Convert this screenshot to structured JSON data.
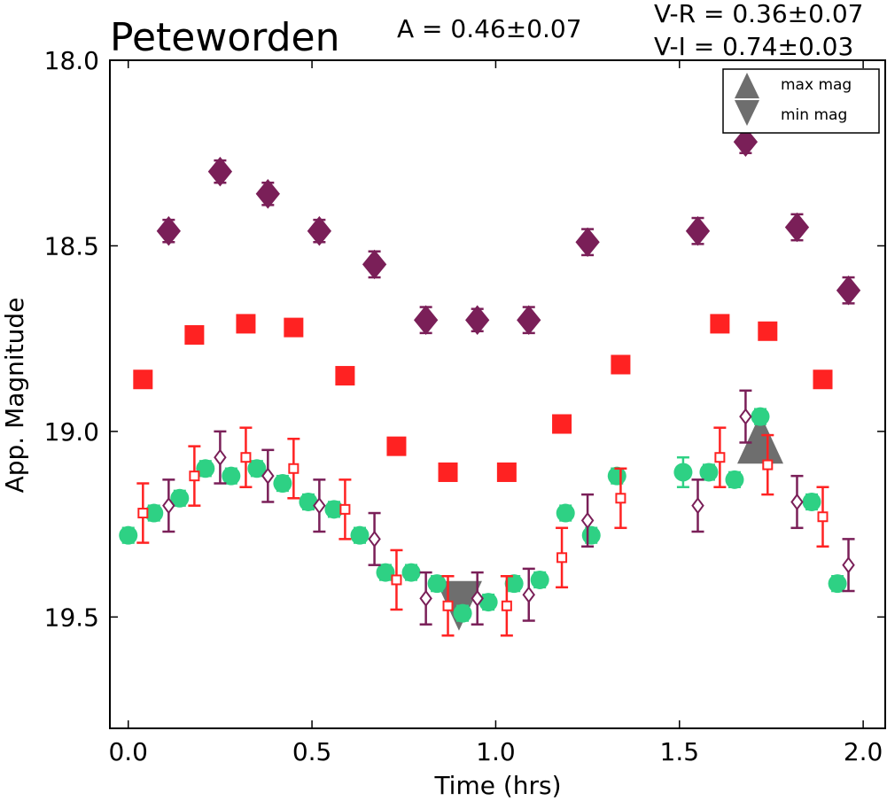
{
  "chart_data": {
    "type": "scatter",
    "title": "Peteworden",
    "annotations": {
      "amplitude": "A  = 0.46±0.07",
      "v_r": "V-R = 0.36±0.07",
      "v_i": "V-I  = 0.74±0.03"
    },
    "xlabel": "Time (hrs)",
    "ylabel": "App. Magnitude",
    "xlim": [
      -0.05,
      2.06
    ],
    "ylim": [
      19.8,
      18.0
    ],
    "y_inverted": true,
    "grid": false,
    "x_ticks": [
      {
        "value": 0.0,
        "label": "0.0"
      },
      {
        "value": 0.5,
        "label": "0.5"
      },
      {
        "value": 1.0,
        "label": "1.0"
      },
      {
        "value": 1.5,
        "label": "1.5"
      },
      {
        "value": 2.0,
        "label": "2.0"
      }
    ],
    "y_ticks": [
      {
        "value": 18.0,
        "label": "18.0"
      },
      {
        "value": 18.5,
        "label": "18.5"
      },
      {
        "value": 19.0,
        "label": "19.0"
      },
      {
        "value": 19.5,
        "label": "19.5"
      }
    ],
    "legend": {
      "position": "top-right",
      "entries": [
        {
          "label": "max mag",
          "marker": "triangle-up"
        },
        {
          "label": "min mag",
          "marker": "triangle-down"
        }
      ]
    },
    "colors": {
      "purple": "#7a1f58",
      "red": "#ff2222",
      "green": "#2ed184",
      "gray": "#6e6e6e"
    },
    "series": [
      {
        "marker": "diamond-filled",
        "color": "#7a1f58",
        "x": [
          0.11,
          0.25,
          0.38,
          0.52,
          0.67,
          0.81,
          0.95,
          1.09,
          1.25,
          1.55,
          1.68,
          1.82,
          1.96
        ],
        "y": [
          18.46,
          18.3,
          18.36,
          18.46,
          18.55,
          18.7,
          18.7,
          18.7,
          18.49,
          18.46,
          18.22,
          18.45,
          18.62
        ],
        "err": [
          0.03,
          0.03,
          0.03,
          0.03,
          0.035,
          0.035,
          0.03,
          0.035,
          0.035,
          0.035,
          0.03,
          0.035,
          0.035
        ]
      },
      {
        "marker": "square-filled",
        "color": "#ff2222",
        "x": [
          0.04,
          0.18,
          0.32,
          0.45,
          0.59,
          0.73,
          0.87,
          1.03,
          1.18,
          1.34,
          1.61,
          1.74,
          1.89
        ],
        "y": [
          18.86,
          18.74,
          18.71,
          18.72,
          18.85,
          19.04,
          19.11,
          19.11,
          18.98,
          18.82,
          18.71,
          18.73,
          18.86
        ],
        "err": [
          0.02,
          0.02,
          0.02,
          0.02,
          0.02,
          0.02,
          0.02,
          0.02,
          0.02,
          0.02,
          0.02,
          0.02,
          0.02
        ]
      },
      {
        "marker": "circle-filled",
        "color": "#2ed184",
        "x": [
          0.0,
          0.07,
          0.14,
          0.21,
          0.28,
          0.35,
          0.42,
          0.49,
          0.56,
          0.63,
          0.7,
          0.77,
          0.84,
          0.91,
          0.98,
          1.05,
          1.12,
          1.19,
          1.26,
          1.33,
          1.51,
          1.58,
          1.65,
          1.72,
          1.86,
          1.93
        ],
        "y": [
          19.28,
          19.22,
          19.18,
          19.1,
          19.12,
          19.1,
          19.14,
          19.19,
          19.21,
          19.28,
          19.38,
          19.38,
          19.41,
          19.49,
          19.46,
          19.41,
          19.4,
          19.22,
          19.28,
          19.12,
          19.11,
          19.11,
          19.13,
          18.96,
          19.19,
          19.41
        ],
        "err": [
          0.02,
          0.02,
          0.02,
          0.02,
          0.02,
          0.02,
          0.02,
          0.02,
          0.02,
          0.02,
          0.02,
          0.02,
          0.02,
          0.02,
          0.02,
          0.02,
          0.02,
          0.02,
          0.02,
          0.02,
          0.04,
          0.02,
          0.02,
          0.02,
          0.02,
          0.02
        ]
      },
      {
        "marker": "diamond-open",
        "color": "#7a1f58",
        "x": [
          0.11,
          0.25,
          0.38,
          0.52,
          0.67,
          0.81,
          0.95,
          1.09,
          1.25,
          1.55,
          1.68,
          1.82,
          1.96
        ],
        "y": [
          19.2,
          19.07,
          19.12,
          19.2,
          19.29,
          19.45,
          19.45,
          19.44,
          19.24,
          19.2,
          18.96,
          19.19,
          19.36
        ],
        "err": [
          0.07,
          0.07,
          0.07,
          0.07,
          0.07,
          0.07,
          0.07,
          0.07,
          0.07,
          0.07,
          0.07,
          0.07,
          0.07
        ]
      },
      {
        "marker": "square-open",
        "color": "#ff2222",
        "x": [
          0.04,
          0.18,
          0.32,
          0.45,
          0.59,
          0.73,
          0.87,
          1.03,
          1.18,
          1.34,
          1.61,
          1.74,
          1.89
        ],
        "y": [
          19.22,
          19.12,
          19.07,
          19.1,
          19.21,
          19.4,
          19.47,
          19.47,
          19.34,
          19.18,
          19.07,
          19.09,
          19.23
        ],
        "err": [
          0.08,
          0.08,
          0.08,
          0.08,
          0.08,
          0.08,
          0.08,
          0.08,
          0.08,
          0.08,
          0.08,
          0.08,
          0.08
        ]
      }
    ],
    "extrema": [
      {
        "label": "max mag",
        "marker": "triangle-up",
        "x": 1.72,
        "y": 19.02
      },
      {
        "label": "min mag",
        "marker": "triangle-down",
        "x": 0.9,
        "y": 19.47
      }
    ]
  }
}
